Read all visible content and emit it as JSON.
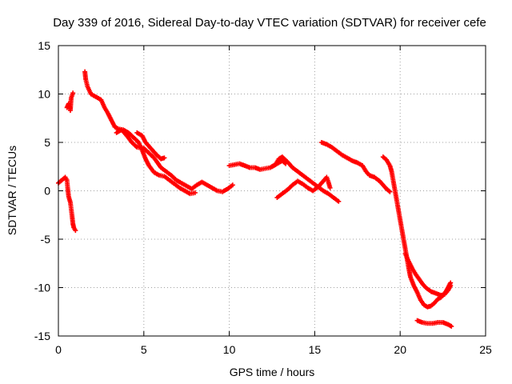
{
  "chart_data": {
    "type": "scatter",
    "title": "Day 339 of 2016, Sidereal Day-to-day VTEC variation (SDTVAR) for receiver cefe",
    "xlabel": "GPS time / hours",
    "ylabel": "SDTVAR / TECUs",
    "xlim": [
      0,
      25
    ],
    "ylim": [
      -15,
      15
    ],
    "xticks": [
      0,
      5,
      10,
      15,
      20,
      25
    ],
    "yticks": [
      -15,
      -10,
      -5,
      0,
      5,
      10,
      15
    ],
    "xtick_labels": [
      "0",
      "5",
      "10",
      "15",
      "20",
      "25"
    ],
    "ytick_labels": [
      "-15",
      "-10",
      "-5",
      "0",
      "5",
      "10",
      "15"
    ],
    "grid": true,
    "legend": "none",
    "marker": "+",
    "color": "#ff0000",
    "series": [
      {
        "name": "track-1",
        "points": [
          [
            0.0,
            0.8
          ],
          [
            0.2,
            1.1
          ],
          [
            0.4,
            1.4
          ],
          [
            0.5,
            1.1
          ],
          [
            0.55,
            0.2
          ],
          [
            0.6,
            -0.6
          ],
          [
            0.7,
            -1.2
          ],
          [
            0.8,
            -2.6
          ],
          [
            0.85,
            -3.4
          ],
          [
            0.9,
            -3.8
          ],
          [
            1.0,
            -4.1
          ]
        ]
      },
      {
        "name": "track-2",
        "points": [
          [
            0.5,
            8.6
          ],
          [
            0.6,
            9.0
          ],
          [
            0.7,
            8.3
          ],
          [
            0.75,
            9.6
          ],
          [
            0.85,
            10.1
          ]
        ]
      },
      {
        "name": "track-3",
        "points": [
          [
            1.55,
            12.3
          ],
          [
            1.6,
            11.5
          ],
          [
            1.7,
            10.8
          ],
          [
            1.9,
            10.0
          ],
          [
            2.2,
            9.7
          ],
          [
            2.5,
            9.4
          ],
          [
            2.7,
            8.6
          ],
          [
            2.9,
            8.0
          ],
          [
            3.1,
            7.3
          ],
          [
            3.3,
            6.6
          ],
          [
            3.5,
            6.4
          ],
          [
            3.8,
            6.3
          ],
          [
            4.1,
            6.0
          ],
          [
            4.4,
            5.5
          ],
          [
            4.7,
            5.0
          ],
          [
            4.9,
            4.2
          ],
          [
            5.1,
            3.3
          ],
          [
            5.3,
            2.6
          ],
          [
            5.6,
            1.9
          ],
          [
            5.9,
            1.6
          ],
          [
            6.2,
            1.5
          ],
          [
            6.5,
            1.1
          ],
          [
            6.8,
            0.7
          ],
          [
            7.1,
            0.3
          ],
          [
            7.4,
            0.0
          ],
          [
            7.7,
            -0.3
          ],
          [
            8.0,
            -0.2
          ]
        ]
      },
      {
        "name": "track-4",
        "points": [
          [
            3.4,
            6.0
          ],
          [
            3.7,
            6.3
          ],
          [
            4.0,
            5.7
          ],
          [
            4.3,
            5.0
          ],
          [
            4.6,
            4.5
          ],
          [
            5.0,
            4.4
          ],
          [
            5.3,
            3.9
          ],
          [
            5.6,
            3.4
          ],
          [
            5.8,
            2.9
          ],
          [
            6.0,
            2.4
          ],
          [
            6.3,
            2.0
          ],
          [
            6.6,
            1.6
          ],
          [
            6.9,
            1.1
          ],
          [
            7.2,
            0.8
          ],
          [
            7.5,
            0.5
          ],
          [
            7.8,
            0.2
          ],
          [
            8.1,
            0.6
          ],
          [
            8.4,
            0.9
          ],
          [
            8.7,
            0.6
          ],
          [
            9.0,
            0.3
          ],
          [
            9.3,
            0.0
          ],
          [
            9.6,
            -0.1
          ],
          [
            9.9,
            0.2
          ],
          [
            10.2,
            0.6
          ]
        ]
      },
      {
        "name": "track-5",
        "points": [
          [
            4.6,
            6.0
          ],
          [
            4.9,
            5.7
          ],
          [
            5.1,
            5.0
          ],
          [
            5.4,
            4.4
          ],
          [
            5.7,
            3.8
          ],
          [
            6.0,
            3.3
          ],
          [
            6.2,
            3.4
          ]
        ]
      },
      {
        "name": "track-6",
        "points": [
          [
            10.0,
            2.6
          ],
          [
            10.3,
            2.7
          ],
          [
            10.6,
            2.8
          ],
          [
            10.9,
            2.6
          ],
          [
            11.2,
            2.4
          ],
          [
            11.5,
            2.4
          ],
          [
            11.8,
            2.2
          ],
          [
            12.1,
            2.3
          ],
          [
            12.4,
            2.4
          ],
          [
            12.7,
            2.7
          ],
          [
            12.9,
            3.3
          ],
          [
            13.1,
            3.5
          ],
          [
            13.4,
            3.0
          ],
          [
            13.7,
            2.4
          ],
          [
            14.0,
            2.0
          ],
          [
            14.3,
            1.6
          ],
          [
            14.6,
            1.2
          ],
          [
            14.9,
            0.8
          ],
          [
            15.2,
            0.4
          ],
          [
            15.5,
            0.0
          ],
          [
            15.8,
            -0.3
          ],
          [
            16.1,
            -0.7
          ],
          [
            16.4,
            -1.1
          ]
        ]
      },
      {
        "name": "track-7",
        "points": [
          [
            12.5,
            2.5
          ],
          [
            12.8,
            2.8
          ],
          [
            13.1,
            3.1
          ],
          [
            13.3,
            2.8
          ]
        ]
      },
      {
        "name": "track-8",
        "points": [
          [
            12.8,
            -0.7
          ],
          [
            13.1,
            -0.3
          ],
          [
            13.4,
            0.1
          ],
          [
            13.7,
            0.6
          ],
          [
            14.0,
            1.0
          ],
          [
            14.3,
            0.7
          ],
          [
            14.6,
            0.3
          ],
          [
            14.9,
            0.0
          ],
          [
            15.2,
            0.4
          ],
          [
            15.5,
            1.0
          ],
          [
            15.7,
            1.4
          ],
          [
            15.8,
            0.9
          ],
          [
            15.9,
            0.3
          ]
        ]
      },
      {
        "name": "track-9",
        "points": [
          [
            15.4,
            5.0
          ],
          [
            15.7,
            4.8
          ],
          [
            16.0,
            4.5
          ],
          [
            16.3,
            4.1
          ],
          [
            16.6,
            3.7
          ],
          [
            16.9,
            3.4
          ],
          [
            17.2,
            3.1
          ],
          [
            17.5,
            2.9
          ],
          [
            17.8,
            2.6
          ],
          [
            18.0,
            2.0
          ],
          [
            18.2,
            1.6
          ],
          [
            18.5,
            1.4
          ],
          [
            18.8,
            1.0
          ],
          [
            19.0,
            0.6
          ],
          [
            19.2,
            0.2
          ],
          [
            19.4,
            -0.1
          ]
        ]
      },
      {
        "name": "track-10",
        "points": [
          [
            19.0,
            3.5
          ],
          [
            19.2,
            3.2
          ],
          [
            19.4,
            2.6
          ],
          [
            19.5,
            2.0
          ],
          [
            19.6,
            1.0
          ],
          [
            19.7,
            0.0
          ],
          [
            19.8,
            -1.0
          ],
          [
            19.9,
            -2.0
          ],
          [
            20.0,
            -3.0
          ],
          [
            20.1,
            -4.0
          ],
          [
            20.2,
            -5.0
          ],
          [
            20.3,
            -6.0
          ],
          [
            20.4,
            -7.0
          ],
          [
            20.5,
            -8.0
          ],
          [
            20.6,
            -8.9
          ],
          [
            20.8,
            -9.8
          ],
          [
            21.0,
            -10.5
          ],
          [
            21.2,
            -11.3
          ],
          [
            21.4,
            -11.8
          ],
          [
            21.6,
            -12.0
          ],
          [
            21.8,
            -11.9
          ],
          [
            22.0,
            -11.6
          ],
          [
            22.2,
            -11.2
          ],
          [
            22.4,
            -11.0
          ],
          [
            22.6,
            -10.6
          ],
          [
            22.8,
            -10.0
          ],
          [
            22.95,
            -9.5
          ]
        ]
      },
      {
        "name": "track-11",
        "points": [
          [
            20.3,
            -6.5
          ],
          [
            20.5,
            -7.3
          ],
          [
            20.7,
            -8.0
          ],
          [
            20.9,
            -8.6
          ],
          [
            21.1,
            -9.1
          ],
          [
            21.3,
            -9.6
          ],
          [
            21.5,
            -10.0
          ],
          [
            21.8,
            -10.4
          ],
          [
            22.1,
            -10.6
          ],
          [
            22.4,
            -10.8
          ],
          [
            22.6,
            -10.7
          ],
          [
            22.8,
            -10.3
          ],
          [
            22.95,
            -9.8
          ]
        ]
      },
      {
        "name": "track-12",
        "points": [
          [
            21.0,
            -13.4
          ],
          [
            21.3,
            -13.6
          ],
          [
            21.6,
            -13.7
          ],
          [
            21.9,
            -13.7
          ],
          [
            22.2,
            -13.6
          ],
          [
            22.5,
            -13.6
          ],
          [
            22.8,
            -13.8
          ],
          [
            23.0,
            -14.0
          ]
        ]
      }
    ]
  }
}
